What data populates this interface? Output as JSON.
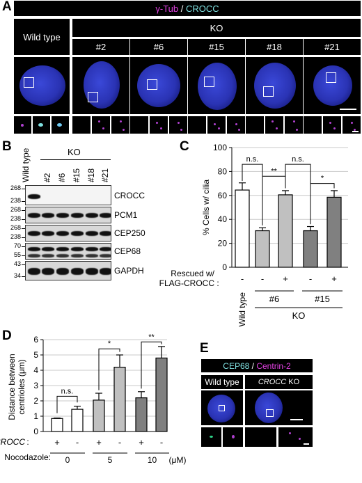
{
  "panelA": {
    "label": "A",
    "header": {
      "gtub": "γ-Tub",
      "sep": " / ",
      "crocc": "CROCC"
    },
    "wildtype": "Wild type",
    "ko": "KO",
    "clones": [
      "#2",
      "#6",
      "#15",
      "#18",
      "#21"
    ]
  },
  "panelB": {
    "label": "B",
    "wildtype": "Wild type",
    "ko": "KO",
    "lanes": [
      "#2",
      "#6",
      "#15",
      "#18",
      "#21"
    ],
    "blots": [
      {
        "name": "CROCC",
        "mw": [
          "268",
          "238"
        ]
      },
      {
        "name": "PCM1",
        "mw": [
          "268",
          "238"
        ]
      },
      {
        "name": "CEP250",
        "mw": [
          "268",
          "238"
        ]
      },
      {
        "name": "CEP68",
        "mw": [
          "70",
          "55"
        ]
      },
      {
        "name": "GAPDH",
        "mw": [
          "43",
          "34"
        ]
      }
    ]
  },
  "panelC": {
    "label": "C",
    "rescued": "Rescued w/",
    "flag": "FLAG-CROCC",
    "colon": ":",
    "rescue_signs": [
      "-",
      "-",
      "+",
      "-",
      "+"
    ],
    "wildtype": "Wild type",
    "groups": [
      "#6",
      "#15"
    ],
    "ko": "KO",
    "sig": [
      "n.s.",
      "n.s.",
      "**",
      "*"
    ]
  },
  "panelD": {
    "label": "D",
    "crocc": "CROCC",
    "colon": ":",
    "crocc_signs": [
      "+",
      "-",
      "+",
      "-",
      "+",
      "-"
    ],
    "nocodazole": "Nocodazole:",
    "conc": [
      "0",
      "5",
      "10"
    ],
    "unit": "(μM)",
    "sig": [
      "n.s.",
      "*",
      "**"
    ]
  },
  "panelE": {
    "label": "E",
    "header": {
      "cep68": "CEP68",
      "sep": " / ",
      "centrin": "Centrin-2"
    },
    "wildtype": "Wild type",
    "ko_italic": "CROCC",
    "ko": " KO"
  },
  "chart_data": [
    {
      "type": "bar",
      "panel": "C",
      "categories": [
        "Wild type",
        "#6 -",
        "#6 +",
        "#15 -",
        "#15 +"
      ],
      "values": [
        64.5,
        30.5,
        60.5,
        30.5,
        58.5
      ],
      "errors": [
        6,
        2.5,
        3.5,
        3.5,
        5.5
      ],
      "colors": [
        "#ffffff",
        "#c0c0c0",
        "#c0c0c0",
        "#808080",
        "#808080"
      ],
      "ylabel": "% Cells w/ cilia",
      "ylim": [
        0,
        100
      ],
      "yticks": [
        "0",
        "20",
        "40",
        "60",
        "80",
        "100"
      ],
      "grid": true
    },
    {
      "type": "bar",
      "panel": "D",
      "categories": [
        "0 +",
        "0 -",
        "5 +",
        "5 -",
        "10 +",
        "10 -"
      ],
      "values": [
        0.85,
        1.45,
        2.05,
        4.2,
        2.2,
        4.8
      ],
      "errors": [
        0.03,
        0.2,
        0.45,
        0.8,
        0.4,
        0.75
      ],
      "colors": [
        "#ffffff",
        "#ffffff",
        "#c0c0c0",
        "#c0c0c0",
        "#808080",
        "#808080"
      ],
      "ylabel": "Distance between centrioles (μm)",
      "ylim": [
        0,
        6
      ],
      "yticks": [
        "0",
        "1",
        "2",
        "3",
        "4",
        "5",
        "6"
      ],
      "grid": true
    }
  ]
}
